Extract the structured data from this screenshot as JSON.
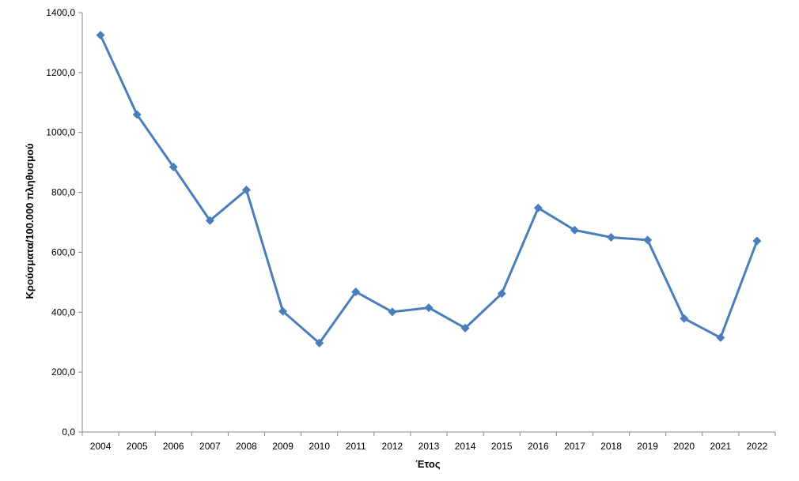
{
  "chart_data": {
    "type": "line",
    "title": "",
    "xlabel": "Έτος",
    "ylabel": "Κρούσματα/100.000 πληθυσμού",
    "ylim": [
      0,
      1400
    ],
    "ytick_step": 200,
    "ytick_labels": [
      "0,0",
      "200,0",
      "400,0",
      "600,0",
      "800,0",
      "1000,0",
      "1200,0",
      "1400,0"
    ],
    "grid": false,
    "legend": "none",
    "categories": [
      "2004",
      "2005",
      "2006",
      "2007",
      "2008",
      "2009",
      "2010",
      "2011",
      "2012",
      "2013",
      "2014",
      "2015",
      "2016",
      "2017",
      "2018",
      "2019",
      "2020",
      "2021",
      "2022"
    ],
    "series": [
      {
        "values": [
          1325,
          1060,
          885,
          706,
          808,
          403,
          297,
          468,
          401,
          415,
          347,
          462,
          748,
          674,
          650,
          641,
          379,
          315,
          638
        ],
        "color": "#4a7ebb",
        "marker": "diamond"
      }
    ]
  }
}
